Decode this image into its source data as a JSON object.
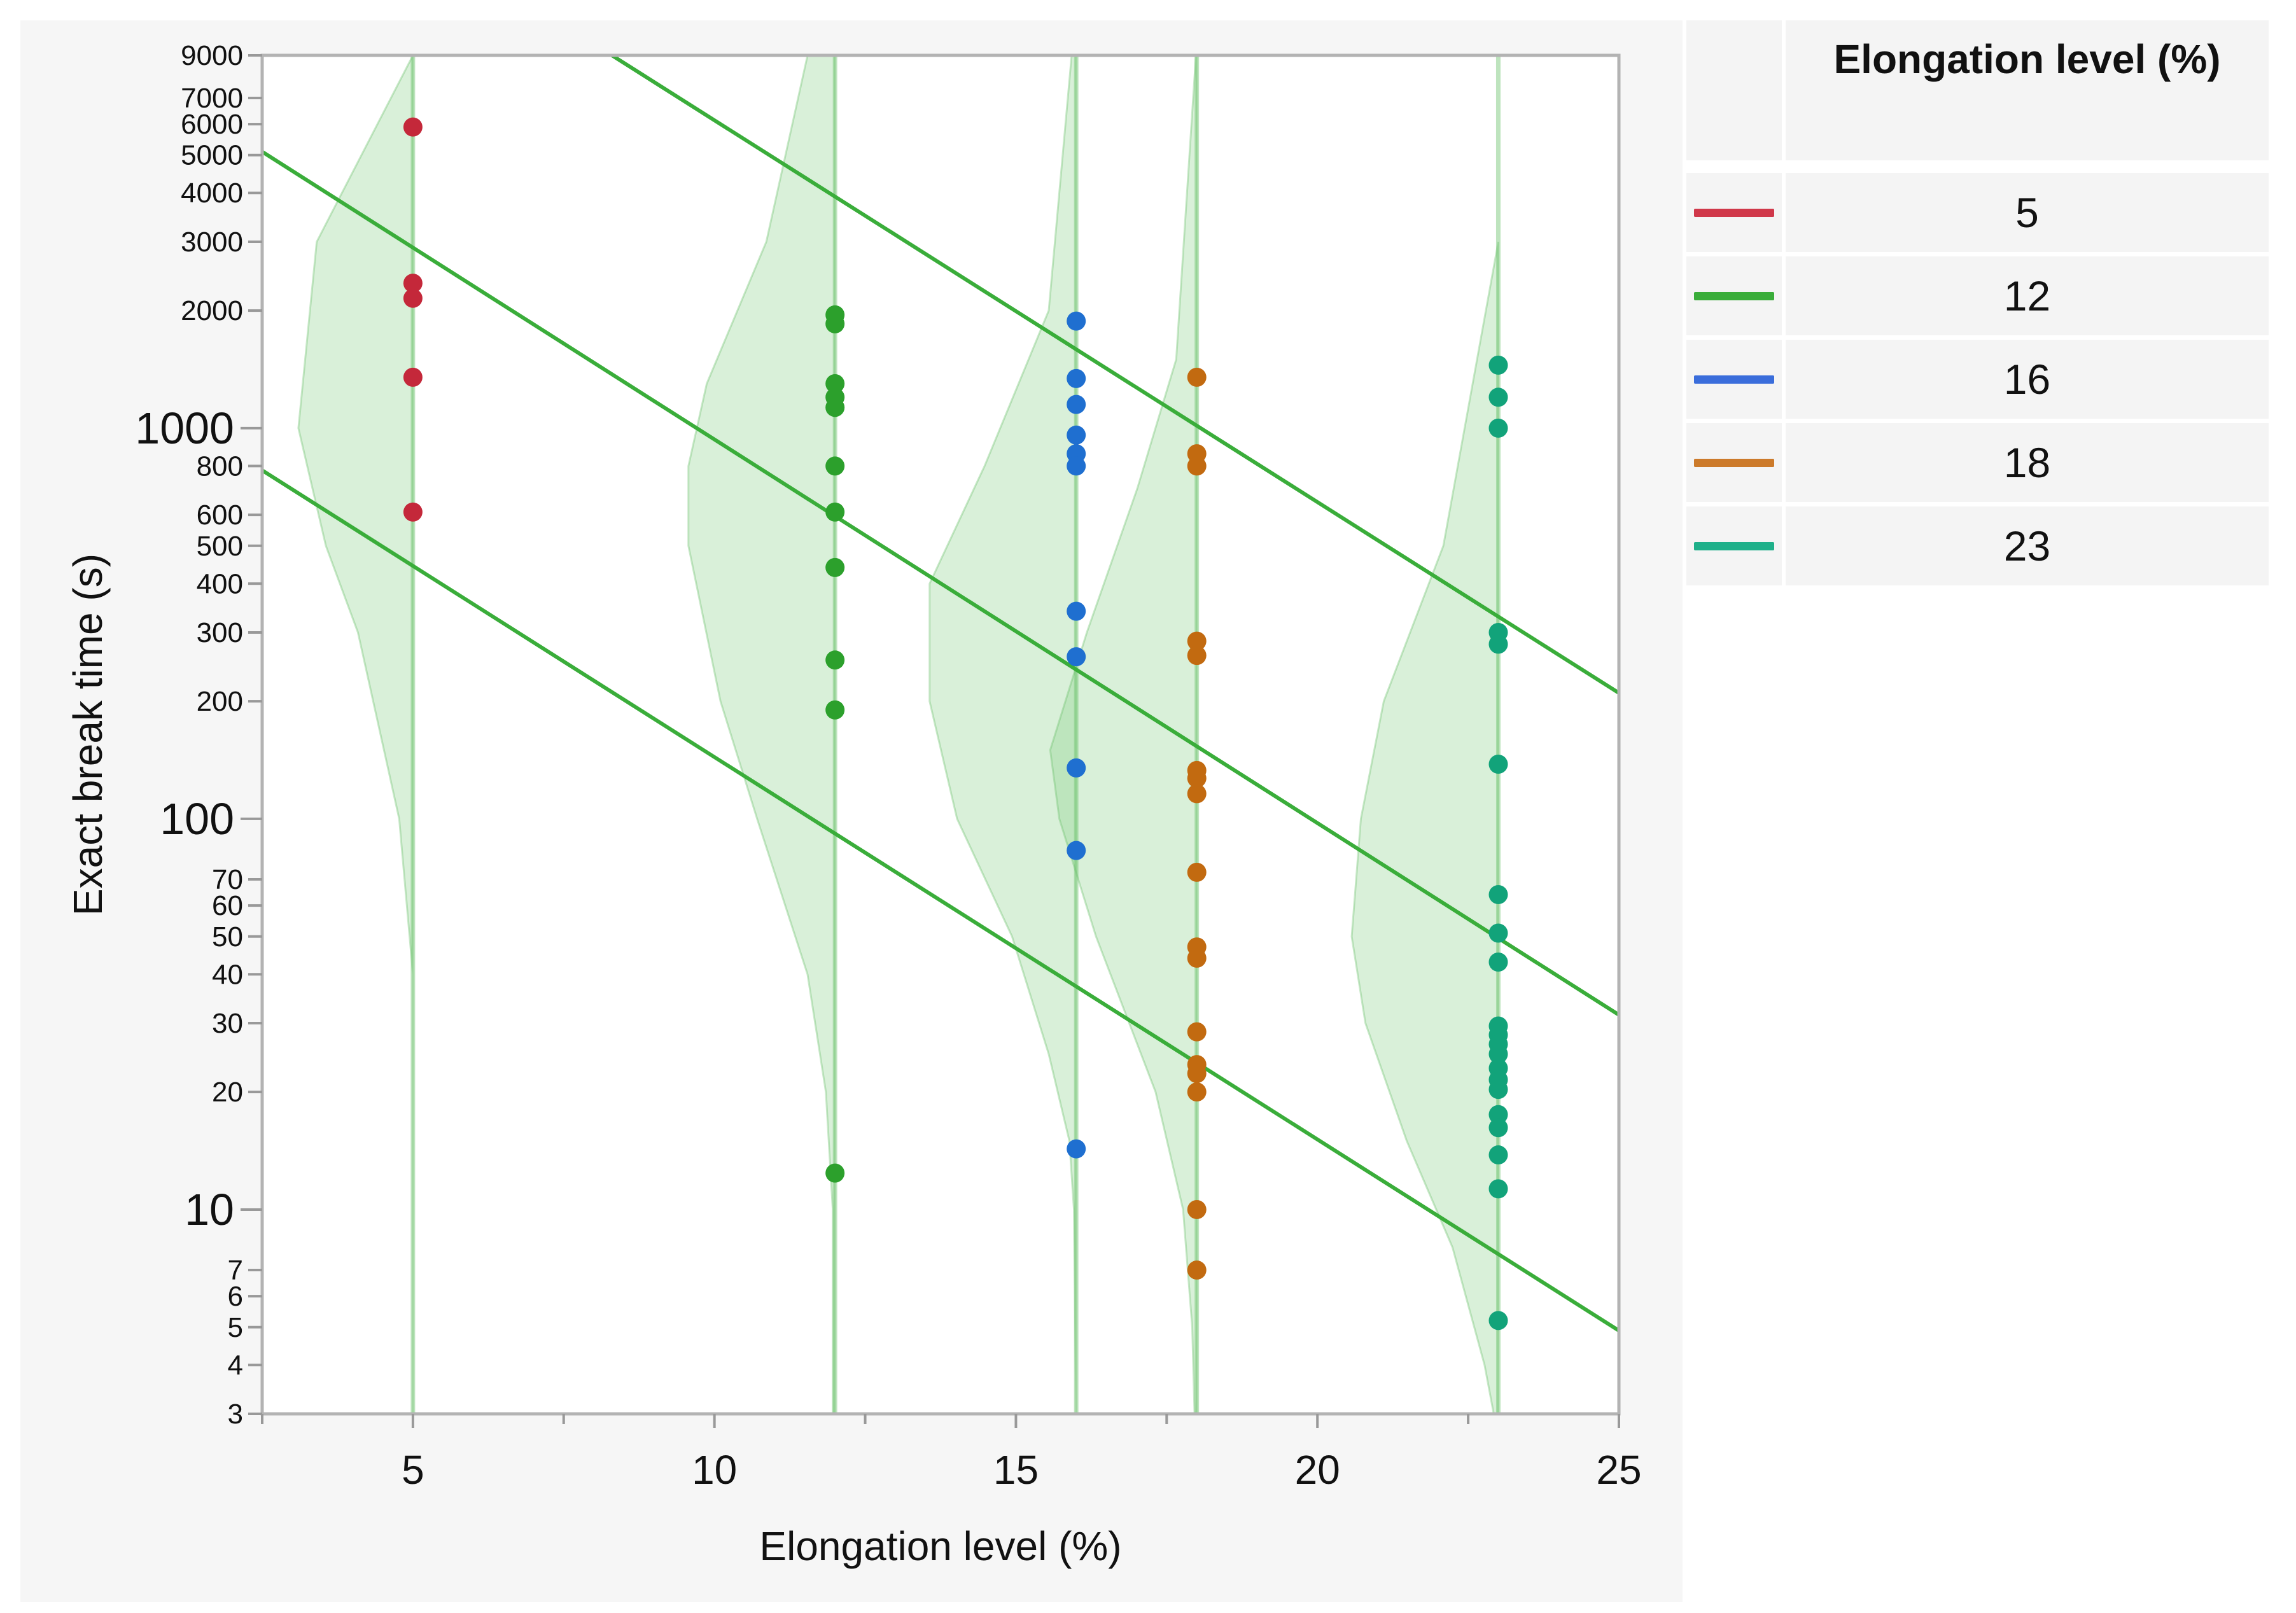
{
  "chart_data": {
    "type": "scatter",
    "xlabel": "Elongation level (%)",
    "ylabel": "Exact break time (s)",
    "xlim": [
      2.5,
      25
    ],
    "ylim": [
      3,
      9000
    ],
    "yscale": "log",
    "x_major_ticks": [
      5,
      10,
      15,
      20,
      25
    ],
    "x_minor_ticks": [
      2.5,
      7.5,
      12.5,
      17.5,
      22.5
    ],
    "y_large_ticks": [
      10,
      100,
      1000
    ],
    "y_small_ticks": [
      3,
      4,
      5,
      6,
      7,
      20,
      30,
      40,
      50,
      60,
      70,
      200,
      300,
      400,
      500,
      600,
      800,
      2000,
      3000,
      4000,
      5000,
      6000,
      7000,
      9000
    ],
    "legend": {
      "title": "Elongation level (%)",
      "placement": "right",
      "entries": [
        {
          "label": "5",
          "color": "#d0384a"
        },
        {
          "label": "12",
          "color": "#3aad3a"
        },
        {
          "label": "16",
          "color": "#3a6ddb"
        },
        {
          "label": "18",
          "color": "#cc7a2a"
        },
        {
          "label": "23",
          "color": "#1fb08a"
        }
      ]
    },
    "series": [
      {
        "name": "5",
        "x": 5,
        "color": "#c4283a",
        "values": [
          5900,
          2350,
          2150,
          1350,
          610
        ]
      },
      {
        "name": "12",
        "x": 12,
        "color": "#2ca02c",
        "values": [
          1950,
          1850,
          1300,
          1200,
          1130,
          800,
          610,
          440,
          255,
          190,
          12.4
        ]
      },
      {
        "name": "16",
        "x": 16,
        "color": "#1f6fd0",
        "values": [
          1880,
          1340,
          1150,
          960,
          860,
          800,
          340,
          260,
          135,
          83,
          14.3
        ]
      },
      {
        "name": "18",
        "x": 18,
        "color": "#c26a10",
        "values": [
          1350,
          860,
          800,
          285,
          262,
          133,
          127,
          116,
          73,
          47,
          44,
          28.5,
          23.5,
          22.3,
          20,
          10,
          7
        ]
      },
      {
        "name": "23",
        "x": 23,
        "color": "#12a37a",
        "values": [
          1450,
          1200,
          1000,
          300,
          280,
          138,
          64,
          51,
          43,
          29.5,
          28,
          26.5,
          25,
          23,
          21.5,
          20.3,
          17.5,
          16.2,
          13.8,
          11.3,
          5.2
        ]
      }
    ],
    "fit_lines": [
      {
        "name": "upper",
        "color": "#3aad3a",
        "points": [
          [
            8.3,
            9000
          ],
          [
            25,
            210
          ]
        ]
      },
      {
        "name": "median",
        "color": "#3aad3a",
        "points": [
          [
            2.5,
            5100
          ],
          [
            25,
            31.5
          ]
        ]
      },
      {
        "name": "lower",
        "color": "#3aad3a",
        "points": [
          [
            2.5,
            780
          ],
          [
            25,
            4.9
          ]
        ]
      }
    ],
    "density_bands": [
      {
        "x": 5,
        "profile": [
          [
            9000,
            0
          ],
          [
            3000,
            2.1
          ],
          [
            1000,
            2.5
          ],
          [
            500,
            1.9
          ],
          [
            300,
            1.2
          ],
          [
            100,
            0.3
          ],
          [
            40,
            0
          ],
          [
            3,
            0
          ]
        ]
      },
      {
        "x": 12,
        "profile": [
          [
            9000,
            0.6
          ],
          [
            3000,
            1.5
          ],
          [
            1300,
            2.8
          ],
          [
            800,
            3.2
          ],
          [
            500,
            3.2
          ],
          [
            200,
            2.5
          ],
          [
            100,
            1.7
          ],
          [
            40,
            0.6
          ],
          [
            20,
            0.2
          ],
          [
            10,
            0.05
          ],
          [
            3,
            0.05
          ]
        ]
      },
      {
        "x": 16,
        "profile": [
          [
            9000,
            0.1
          ],
          [
            2000,
            0.6
          ],
          [
            800,
            2.0
          ],
          [
            400,
            3.2
          ],
          [
            200,
            3.2
          ],
          [
            100,
            2.6
          ],
          [
            50,
            1.4
          ],
          [
            25,
            0.6
          ],
          [
            15,
            0.15
          ],
          [
            10,
            0.05
          ],
          [
            3,
            0
          ]
        ]
      },
      {
        "x": 18,
        "profile": [
          [
            9000,
            0.02
          ],
          [
            1500,
            0.45
          ],
          [
            700,
            1.3
          ],
          [
            300,
            2.4
          ],
          [
            150,
            3.2
          ],
          [
            100,
            3.0
          ],
          [
            50,
            2.2
          ],
          [
            20,
            0.9
          ],
          [
            10,
            0.3
          ],
          [
            5,
            0.1
          ],
          [
            3,
            0.05
          ]
        ]
      },
      {
        "x": 23,
        "profile": [
          [
            3000,
            0
          ],
          [
            500,
            1.2
          ],
          [
            200,
            2.5
          ],
          [
            100,
            3.0
          ],
          [
            50,
            3.2
          ],
          [
            30,
            2.9
          ],
          [
            15,
            2.0
          ],
          [
            8,
            1.0
          ],
          [
            4,
            0.3
          ],
          [
            3,
            0.1
          ]
        ]
      }
    ]
  }
}
